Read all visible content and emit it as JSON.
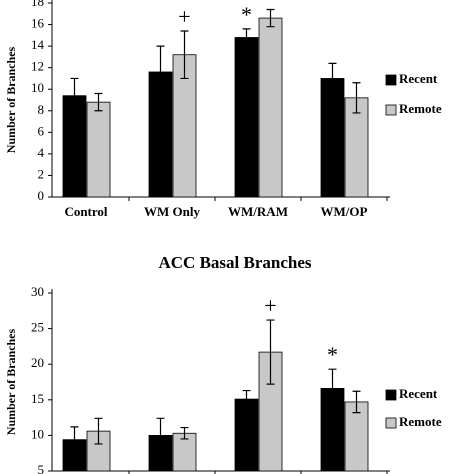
{
  "chart_data": [
    {
      "type": "bar",
      "y_label": "Number of Branches",
      "categories": [
        "Control",
        "WM Only",
        "WM/RAM",
        "WM/OP"
      ],
      "series": [
        {
          "name": "Recent",
          "color": "#000000",
          "values": [
            9.4,
            11.6,
            14.8,
            11.0
          ],
          "errors": [
            1.6,
            2.4,
            0.8,
            1.4
          ],
          "annotations": [
            null,
            null,
            "*",
            null
          ]
        },
        {
          "name": "Remote",
          "color": "#c8c8c8",
          "values": [
            8.8,
            13.2,
            16.6,
            9.2
          ],
          "errors": [
            0.8,
            2.2,
            0.8,
            1.4
          ],
          "annotations": [
            null,
            "+",
            null,
            null
          ]
        }
      ],
      "ylim": [
        0,
        18
      ],
      "yticks": [
        0,
        2,
        4,
        6,
        8,
        10,
        12,
        14,
        16,
        18
      ],
      "legend": "right"
    },
    {
      "type": "bar",
      "title": "ACC Basal Branches",
      "y_label": "Number of Branches",
      "categories": [
        null,
        null,
        null,
        null
      ],
      "series": [
        {
          "name": "Recent",
          "color": "#000000",
          "values": [
            9.4,
            10.0,
            15.1,
            16.6
          ],
          "errors": [
            1.8,
            2.4,
            1.2,
            2.7
          ],
          "annotations": [
            null,
            null,
            null,
            "*"
          ]
        },
        {
          "name": "Remote",
          "color": "#c8c8c8",
          "values": [
            10.6,
            10.3,
            21.7,
            14.7
          ],
          "errors": [
            1.8,
            0.8,
            4.5,
            1.5
          ],
          "annotations": [
            null,
            null,
            "+",
            null
          ]
        }
      ],
      "ylim": [
        5,
        30
      ],
      "yticks": [
        5,
        10,
        15,
        20,
        25,
        30
      ],
      "legend": "right"
    }
  ]
}
